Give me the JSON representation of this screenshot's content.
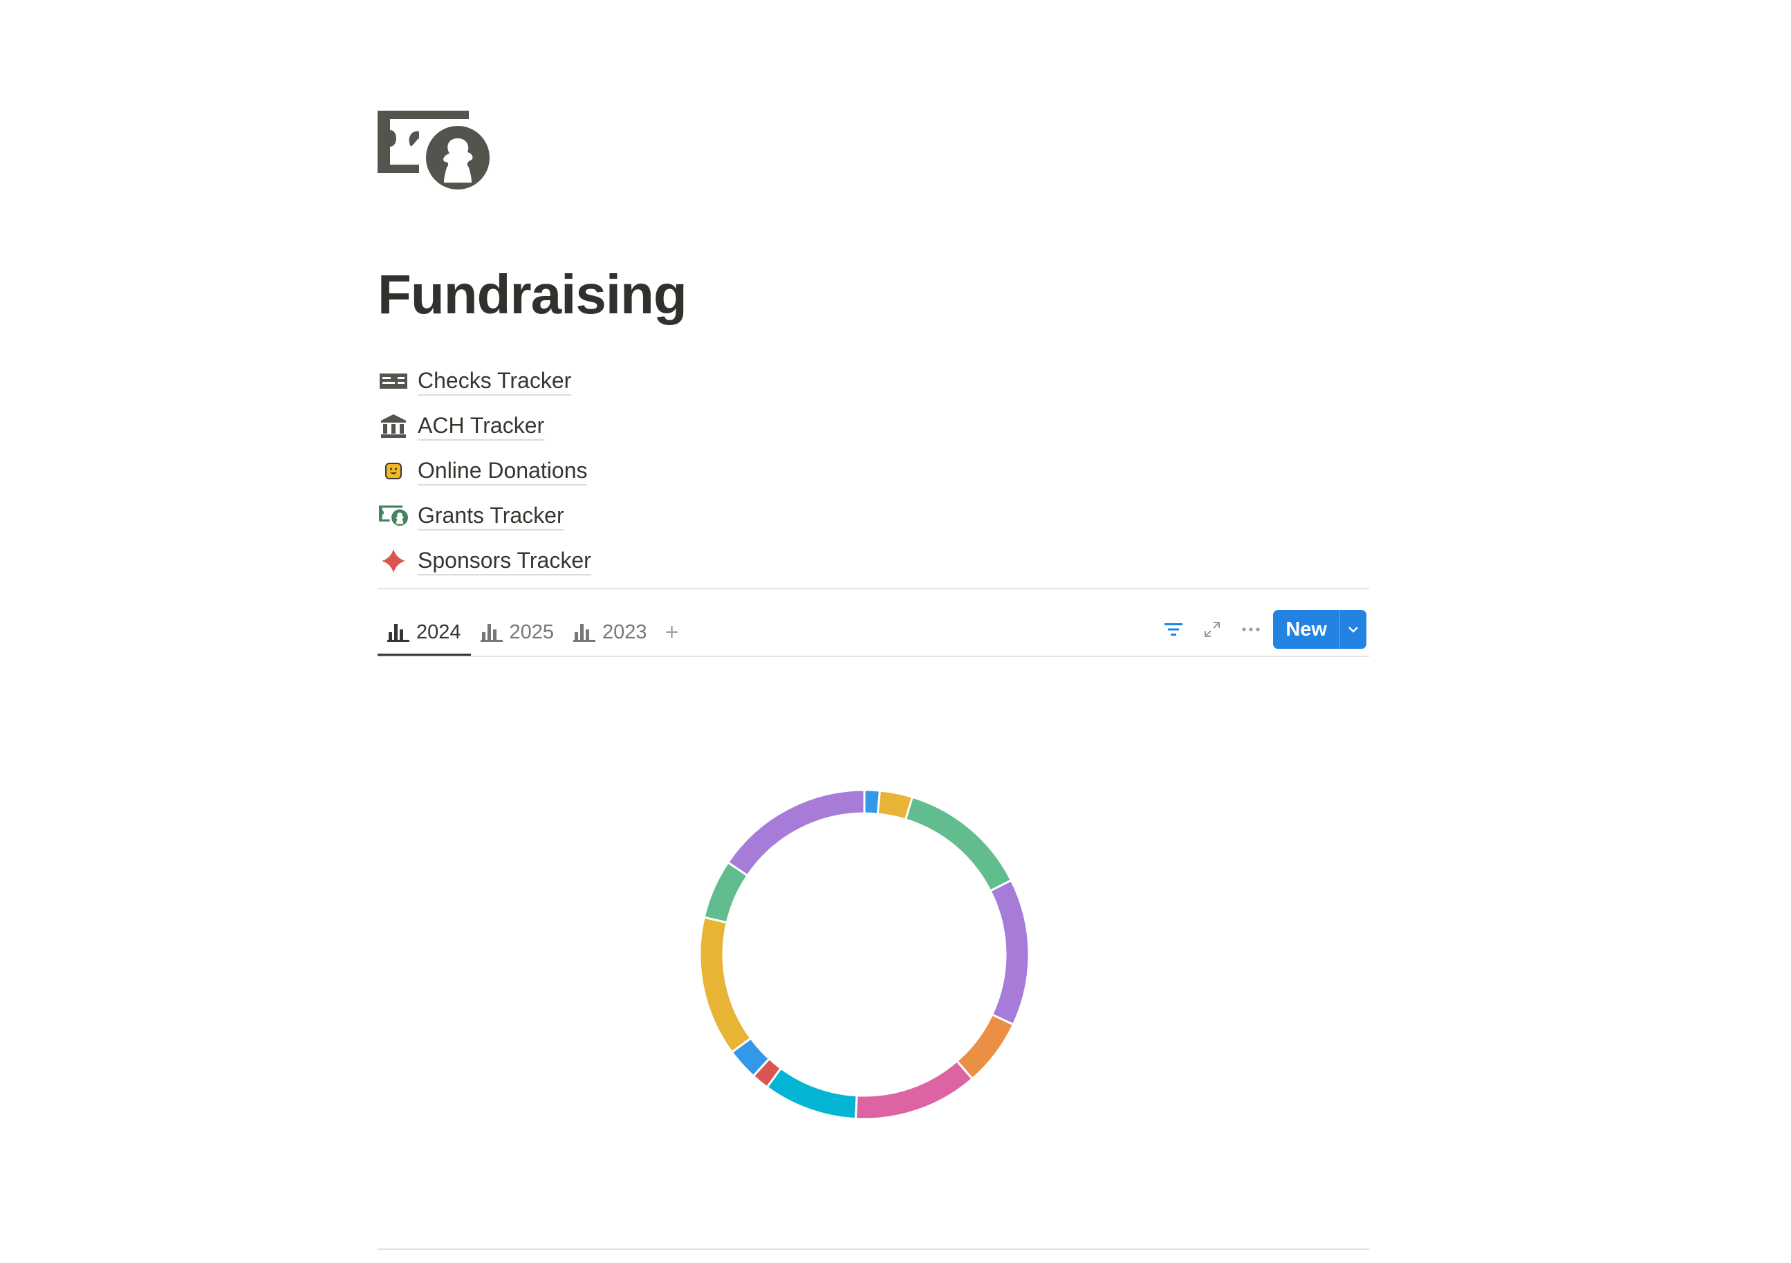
{
  "page": {
    "icon": "money-portrait-icon",
    "title": "Fundraising"
  },
  "links": [
    {
      "label": "Checks Tracker",
      "icon": "check-icon"
    },
    {
      "label": "ACH Tracker",
      "icon": "bank-icon"
    },
    {
      "label": "Online Donations",
      "icon": "smiley-bot-icon"
    },
    {
      "label": "Grants Tracker",
      "icon": "money-portrait-icon"
    },
    {
      "label": "Sponsors Tracker",
      "icon": "diamond-icon"
    }
  ],
  "tabs": [
    {
      "label": "2024",
      "active": true
    },
    {
      "label": "2025",
      "active": false
    },
    {
      "label": "2023",
      "active": false
    }
  ],
  "toolbar": {
    "new_label": "New",
    "accent": "#2383e2"
  },
  "chart_data": {
    "type": "pie",
    "variant": "donut",
    "legend": "none",
    "values": [
      1.5,
      3.2,
      12.8,
      14.4,
      6.6,
      12.2,
      9.2,
      1.7,
      3.1,
      13.7,
      5.8,
      15.5
    ],
    "colors": [
      "#3398e8",
      "#e7b436",
      "#62bd8e",
      "#a67cd8",
      "#ea8f43",
      "#dd64a3",
      "#03b5d2",
      "#d95652",
      "#3398e8",
      "#e7b436",
      "#62bd8e",
      "#a67cd8"
    ]
  }
}
